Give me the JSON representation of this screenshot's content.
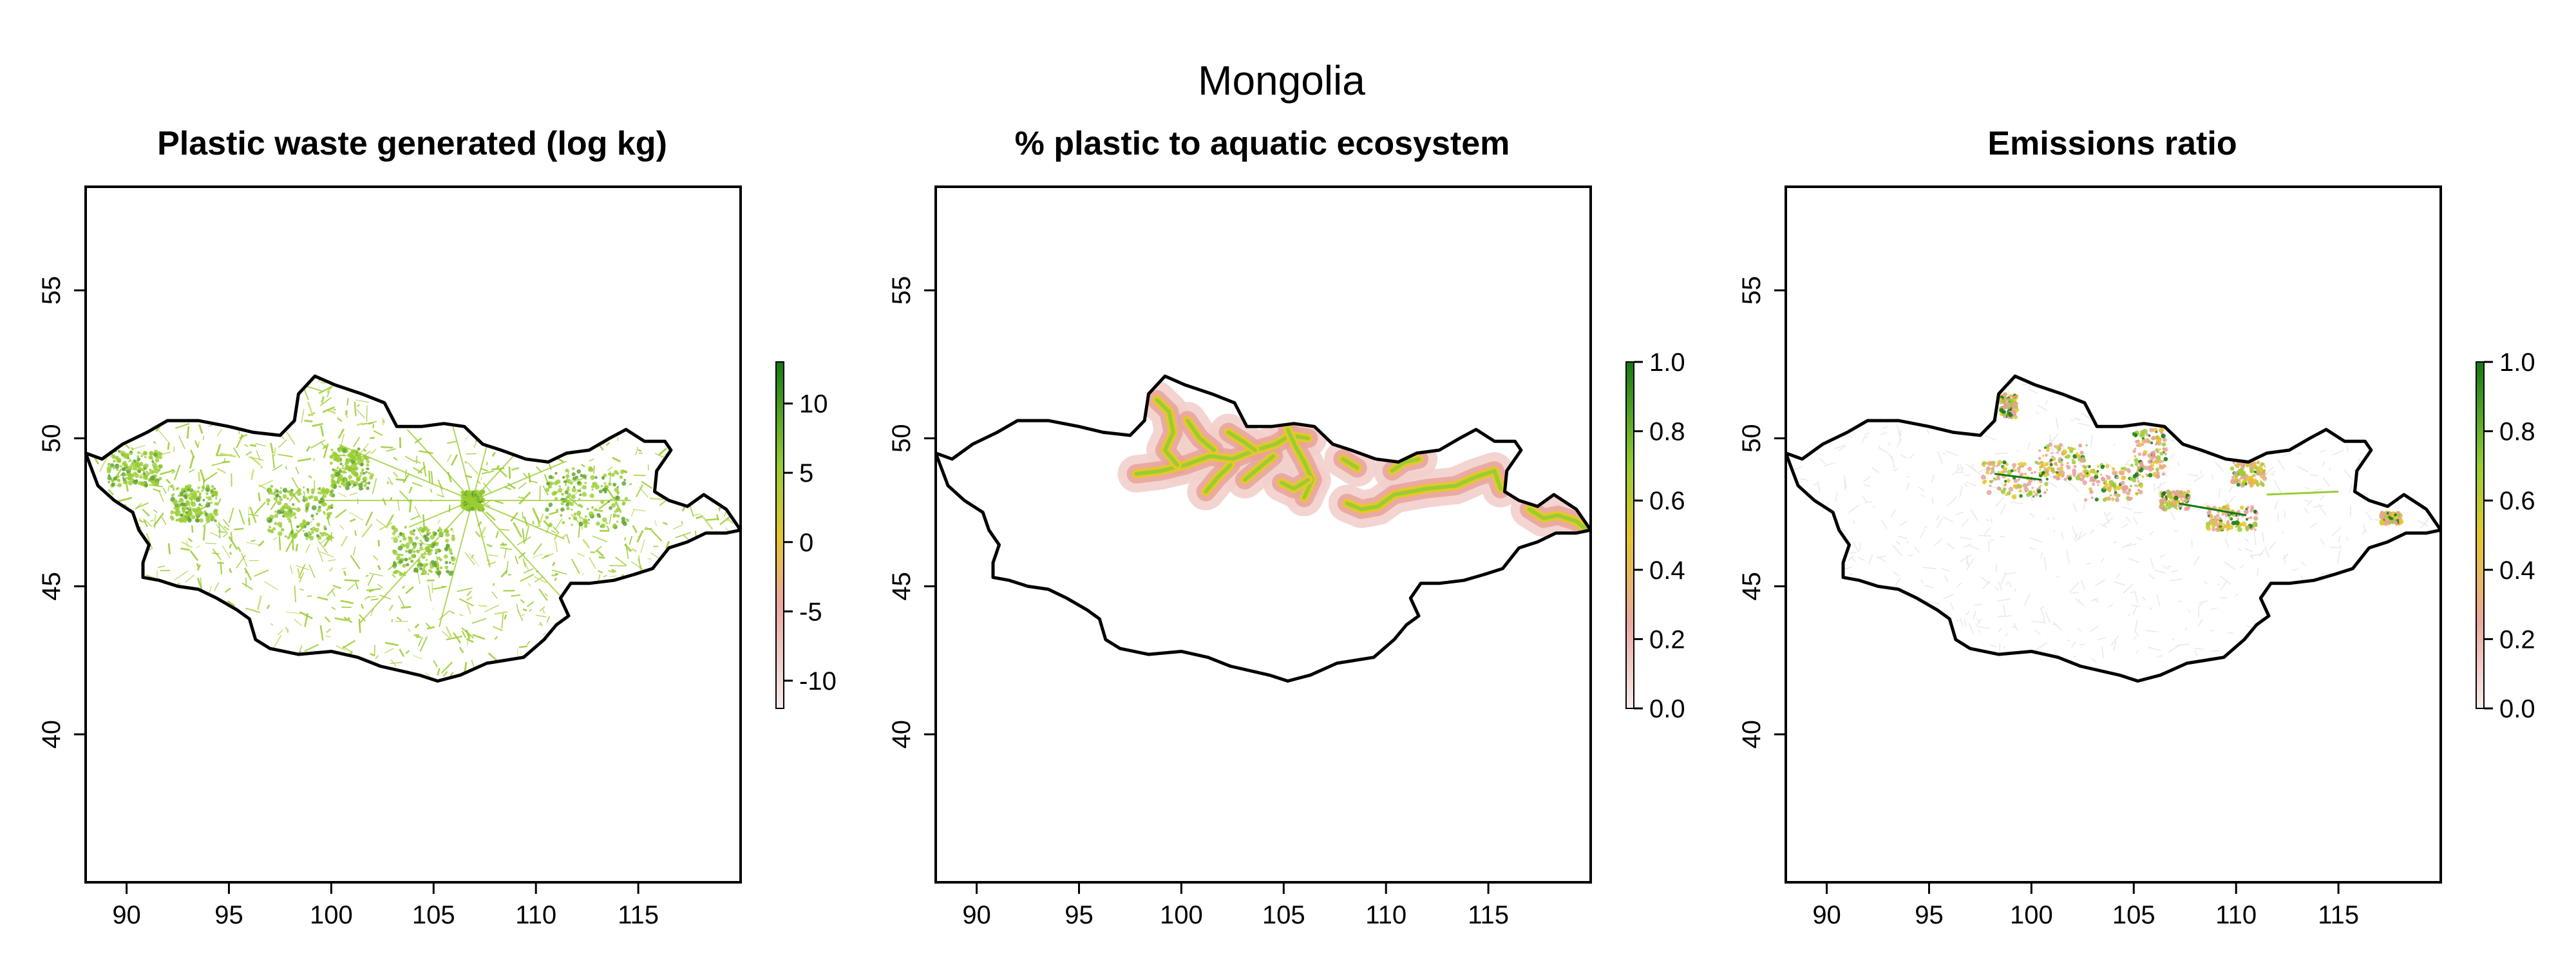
{
  "figure": {
    "title": "Mongolia"
  },
  "axes": {
    "x_ticks": [
      "90",
      "95",
      "100",
      "105",
      "110",
      "115"
    ],
    "x_values": [
      90,
      95,
      100,
      105,
      110,
      115
    ],
    "y_ticks": [
      "40",
      "45",
      "50",
      "55"
    ],
    "y_values": [
      40,
      45,
      50,
      55
    ],
    "xlim": [
      88,
      120
    ],
    "ylim": [
      35,
      58.5
    ]
  },
  "colors": {
    "low": "#f7e4e4",
    "mid_low": "#e8a29a",
    "mid": "#e5c72a",
    "mid_high": "#9acd32",
    "high": "#117a11",
    "border": "#000000",
    "faint": "#e8e8e8"
  },
  "chart_data": [
    {
      "type": "heatmap",
      "title": "Plastic waste generated (log kg)",
      "xlabel": "",
      "ylabel": "",
      "xlim": [
        88,
        120
      ],
      "ylim": [
        35,
        58.5
      ],
      "colorbar": {
        "ticks": [
          "10",
          "5",
          "0",
          "-5",
          "-10"
        ],
        "tick_values": [
          10,
          5,
          0,
          -5,
          -10
        ],
        "range": [
          -12,
          13
        ]
      },
      "dominant_color": "#9acd32",
      "coverage": "entire country"
    },
    {
      "type": "heatmap",
      "title": "% plastic to aquatic ecosystem",
      "xlabel": "",
      "ylabel": "",
      "xlim": [
        88,
        120
      ],
      "ylim": [
        35,
        58.5
      ],
      "colorbar": {
        "ticks": [
          "1.0",
          "0.8",
          "0.6",
          "0.4",
          "0.2",
          "0.0"
        ],
        "tick_values": [
          1.0,
          0.8,
          0.6,
          0.4,
          0.2,
          0.0
        ],
        "range": [
          0,
          1
        ]
      },
      "dominant_color": "#9acd32",
      "coverage": "northern river basins"
    },
    {
      "type": "heatmap",
      "title": "Emissions ratio",
      "xlabel": "",
      "ylabel": "",
      "xlim": [
        88,
        120
      ],
      "ylim": [
        35,
        58.5
      ],
      "colorbar": {
        "ticks": [
          "1.0",
          "0.8",
          "0.6",
          "0.4",
          "0.2",
          "0.0"
        ],
        "tick_values": [
          1.0,
          0.8,
          0.6,
          0.4,
          0.2,
          0.0
        ],
        "range": [
          0,
          1
        ]
      },
      "dominant_color": "#e8a29a",
      "coverage": "central-northern hotspots"
    }
  ]
}
